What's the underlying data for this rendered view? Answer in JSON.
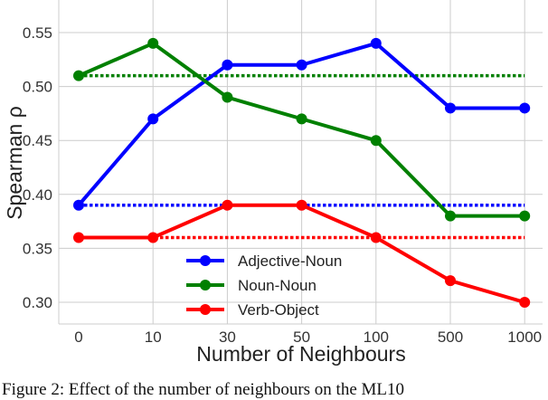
{
  "chart_data": {
    "type": "line",
    "title": "",
    "xlabel": "Number of Neighbours",
    "ylabel": "Spearman ρ",
    "categories": [
      "0",
      "10",
      "30",
      "50",
      "100",
      "500",
      "1000"
    ],
    "yticks": [
      "0.30",
      "0.35",
      "0.40",
      "0.45",
      "0.50",
      "0.55"
    ],
    "ylim": [
      0.28,
      0.58
    ],
    "grid": true,
    "legend_position": "bottom-center",
    "series": [
      {
        "name": "Adjective-Noun",
        "color": "#0000ff",
        "values": [
          0.39,
          0.47,
          0.52,
          0.52,
          0.54,
          0.48,
          0.48
        ],
        "baseline": 0.39
      },
      {
        "name": "Noun-Noun",
        "color": "#008000",
        "values": [
          0.51,
          0.54,
          0.49,
          0.47,
          0.45,
          0.38,
          0.38
        ],
        "baseline": 0.51
      },
      {
        "name": "Verb-Object",
        "color": "#ff0000",
        "values": [
          0.36,
          0.36,
          0.39,
          0.39,
          0.36,
          0.32,
          0.3
        ],
        "baseline": 0.36
      }
    ]
  },
  "caption": "Figure 2: Effect of the number of neighbours on the ML10"
}
